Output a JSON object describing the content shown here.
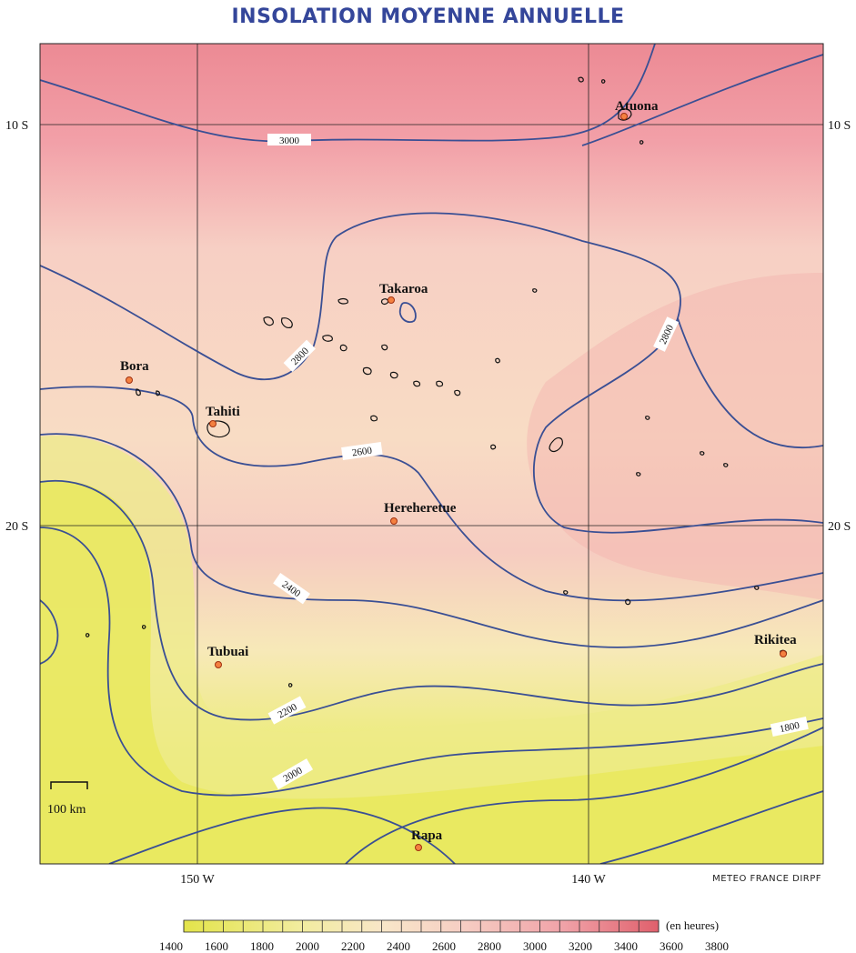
{
  "title": "INSOLATION MOYENNE ANNUELLE",
  "credit": "METEO FRANCE DIRPF",
  "latitude_labels": {
    "lat_10": "10 S",
    "lat_20": "20 S"
  },
  "longitude_labels": {
    "lon_150": "150 W",
    "lon_140": "140 W"
  },
  "scale_bar_label": "100 km",
  "stations": [
    {
      "name": "Atuona"
    },
    {
      "name": "Takaroa"
    },
    {
      "name": "Bora"
    },
    {
      "name": "Tahiti"
    },
    {
      "name": "Hereheretue"
    },
    {
      "name": "Tubuai"
    },
    {
      "name": "Rikitea"
    },
    {
      "name": "Rapa"
    }
  ],
  "contour_labels": {
    "c3000": "3000",
    "c2800a": "2800",
    "c2800b": "2800",
    "c2600": "2600",
    "c2400": "2400",
    "c2200": "2200",
    "c2000": "2000",
    "c1800": "1800"
  },
  "legend": {
    "unit": "(en heures)",
    "ticks": [
      "1400",
      "1600",
      "1800",
      "2000",
      "2200",
      "2400",
      "2600",
      "2800",
      "3000",
      "3200",
      "3400",
      "3600",
      "3800"
    ]
  },
  "colors": {
    "title": "#34469a",
    "contour": "#3a4f94",
    "low": "#e3e44a",
    "mid": "#f8ddc3",
    "high": "#ee8b93",
    "station": "#f06a2a"
  }
}
